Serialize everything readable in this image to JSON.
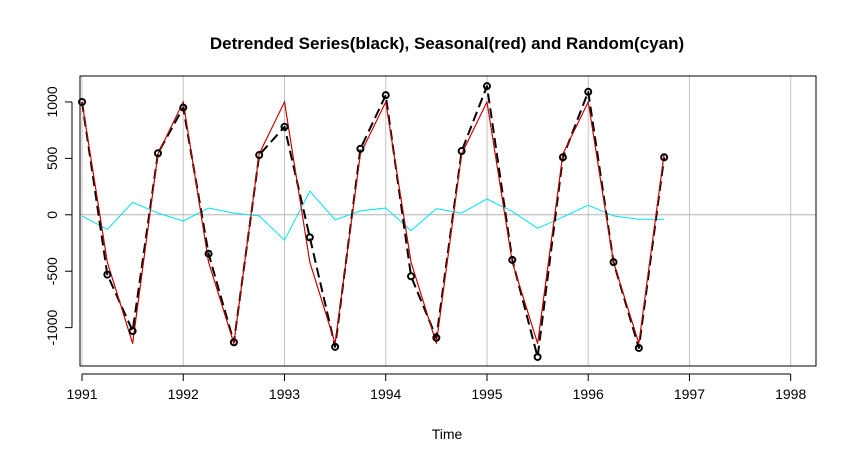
{
  "chart_data": {
    "type": "line",
    "title": "Detrended Series(black), Seasonal(red) and Random(cyan)",
    "xlabel": "Time",
    "ylabel": "",
    "xlim": [
      1990.98,
      1998.25
    ],
    "ylim": [
      -1340,
      1230
    ],
    "x_ticks": [
      1991,
      1992,
      1993,
      1994,
      1995,
      1996,
      1997,
      1998
    ],
    "y_ticks": [
      -1000,
      -500,
      0,
      500,
      1000
    ],
    "grid": true,
    "x": [
      1991.0,
      1991.25,
      1991.5,
      1991.75,
      1992.0,
      1992.25,
      1992.5,
      1992.75,
      1993.0,
      1993.25,
      1993.5,
      1993.75,
      1994.0,
      1994.25,
      1994.5,
      1994.75,
      1995.0,
      1995.25,
      1995.5,
      1995.75,
      1996.0,
      1996.25,
      1996.5,
      1996.75
    ],
    "series": [
      {
        "color": "#000000",
        "style": "line-points",
        "values": [
          1000,
          -530,
          -1030,
          545,
          950,
          -345,
          -1130,
          530,
          780,
          -200,
          -1170,
          585,
          1060,
          -545,
          -1090,
          565,
          1140,
          -400,
          -1260,
          510,
          1090,
          -420,
          -1180,
          510
        ]
      },
      {
        "color": "#cc0000",
        "style": "line",
        "values": [
          1000,
          -420,
          -1140,
          540,
          1000,
          -420,
          -1140,
          540,
          1000,
          -420,
          -1140,
          540,
          1000,
          -420,
          -1140,
          540,
          1000,
          -420,
          -1140,
          540,
          1000,
          -420,
          -1140,
          540
        ]
      },
      {
        "color": "#00e5ee",
        "style": "line",
        "values": [
          -10,
          -130,
          110,
          15,
          -55,
          60,
          15,
          -10,
          -225,
          210,
          -45,
          35,
          60,
          -140,
          55,
          15,
          140,
          30,
          -120,
          -20,
          85,
          -10,
          -40,
          -40
        ]
      }
    ]
  }
}
